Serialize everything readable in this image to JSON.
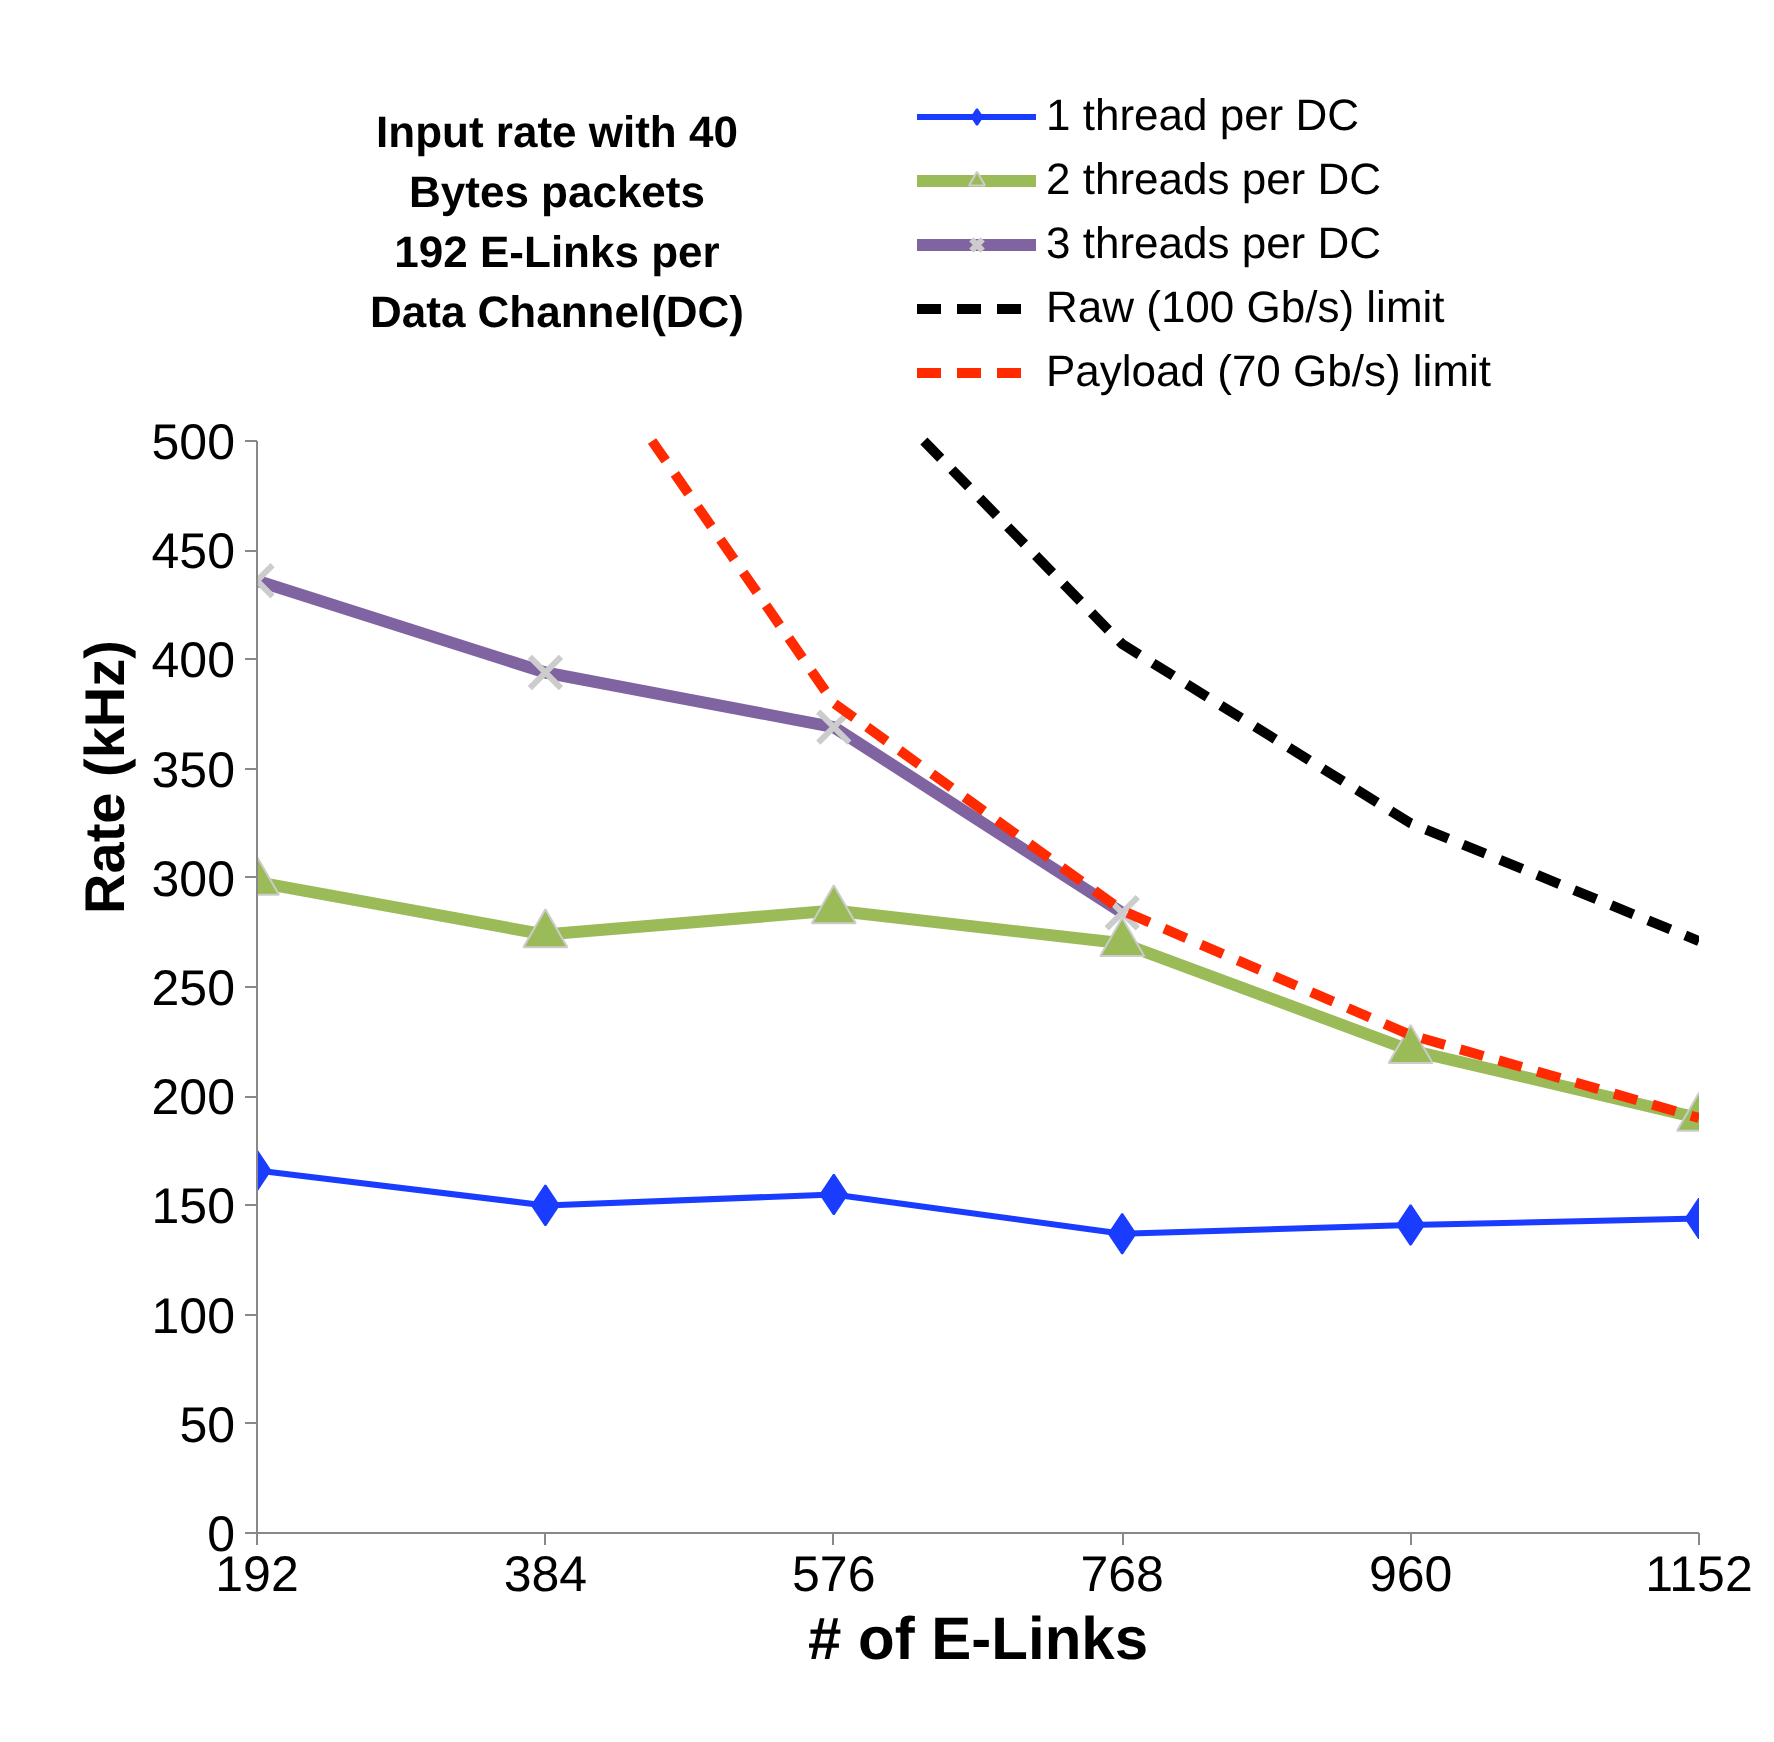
{
  "chart_data": {
    "type": "line",
    "title": "Input rate with 40\nBytes packets\n192 E-Links per\nData Channel(DC)",
    "xlabel": "# of E-Links",
    "ylabel": "Rate (kHz)",
    "x": [
      192,
      384,
      576,
      768,
      960,
      1152
    ],
    "series": [
      {
        "name": "1 thread per DC",
        "color": "#1a3cff",
        "marker": "diamond",
        "line_style": "solid",
        "values": [
          166,
          150,
          155,
          137,
          141,
          144
        ]
      },
      {
        "name": "2 threads per DC",
        "color": "#9bbb59",
        "marker": "triangle",
        "line_style": "solid",
        "values": [
          298,
          274,
          285,
          270,
          221,
          190
        ]
      },
      {
        "name": "3 threads per DC",
        "color": "#8064a2",
        "marker": "cross",
        "line_style": "solid",
        "values": [
          436,
          394,
          369,
          284,
          null,
          null
        ]
      },
      {
        "name": "Raw (100 Gb/s) limit",
        "color": "#000000",
        "marker": "none",
        "line_style": "dashed",
        "x": [
          636,
          768,
          960,
          1152
        ],
        "values": [
          500,
          407,
          325,
          271
        ]
      },
      {
        "name": "Payload (70 Gb/s) limit",
        "color": "#ff2a00",
        "marker": "none",
        "line_style": "dashed",
        "x": [
          455,
          576,
          768,
          960,
          1152
        ],
        "values": [
          500,
          380,
          285,
          228,
          190
        ]
      }
    ],
    "xlim": [
      192,
      1152
    ],
    "xticks": [
      192,
      384,
      576,
      768,
      960,
      1152
    ],
    "ylim": [
      0,
      500
    ],
    "yticks": [
      0,
      50,
      100,
      150,
      200,
      250,
      300,
      350,
      400,
      450,
      500
    ],
    "grid": false,
    "legend": "top right"
  }
}
